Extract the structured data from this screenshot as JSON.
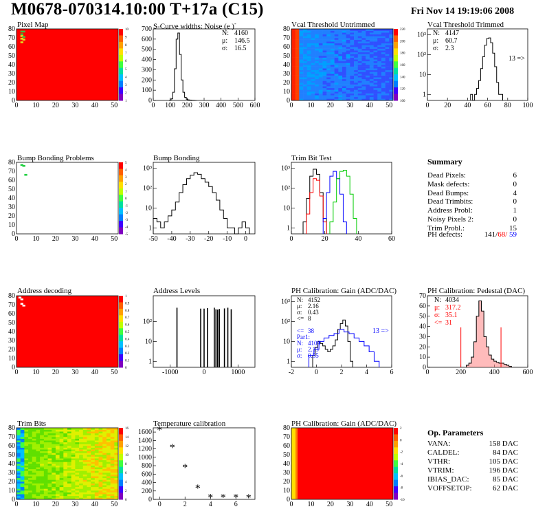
{
  "header": {
    "title": "M0678-070314.10:00 T+17a (C15)",
    "timestamp": "Fri Nov 14 19:19:06 2008"
  },
  "chart_data": [
    {
      "id": "pixel-map",
      "type": "heatmap",
      "title": "Pixel Map",
      "xlim": [
        0,
        52
      ],
      "ylim": [
        0,
        80
      ],
      "x_ticks": [
        0,
        10,
        20,
        30,
        40,
        50
      ],
      "y_ticks": [
        0,
        10,
        20,
        30,
        40,
        50,
        60,
        70,
        80
      ],
      "z_ticks": [
        1,
        2,
        3,
        4,
        5,
        6,
        7,
        8,
        9,
        10
      ],
      "fill": "#ff0000",
      "hot_cells": [
        [
          2,
          78,
          "#40c040"
        ],
        [
          3,
          78,
          "#40c040"
        ],
        [
          2,
          75,
          "#40c040"
        ],
        [
          2,
          73,
          "#e0e020"
        ],
        [
          3,
          72,
          "#40c040"
        ],
        [
          2,
          70,
          "#e0e020"
        ],
        [
          3,
          69,
          "#e0e020"
        ],
        [
          2,
          66,
          "#e0e020"
        ]
      ]
    },
    {
      "id": "scurve-noise",
      "type": "histogram",
      "title": "S-Curve widths: Noise (e )",
      "superscript": "-",
      "xlim": [
        0,
        600
      ],
      "ylim": [
        0,
        700
      ],
      "x_ticks": [
        0,
        100,
        200,
        300,
        400,
        500,
        600
      ],
      "y_ticks": [
        0,
        100,
        200,
        300,
        400,
        500,
        600,
        700
      ],
      "stats": [
        {
          "label": "N:",
          "value": "4160"
        },
        {
          "label": "μ:",
          "value": "146.5"
        },
        {
          "label": "σ:",
          "value": "16.5"
        }
      ],
      "bins_x": [
        100,
        110,
        120,
        130,
        140,
        150,
        160,
        170,
        180,
        190,
        200,
        210,
        220,
        230,
        240,
        250
      ],
      "values": [
        2,
        15,
        80,
        310,
        600,
        660,
        450,
        200,
        80,
        30,
        12,
        5,
        3,
        2,
        1,
        0
      ]
    },
    {
      "id": "vcal-untrimmed",
      "type": "heatmap",
      "title": "Vcal Threshold Untrimmed",
      "xlim": [
        0,
        52
      ],
      "ylim": [
        0,
        80
      ],
      "x_ticks": [
        0,
        10,
        20,
        30,
        40,
        50
      ],
      "y_ticks": [
        0,
        10,
        20,
        30,
        40,
        50,
        60,
        70,
        80
      ],
      "z_ticks": [
        100,
        120,
        140,
        160,
        180,
        200,
        220
      ]
    },
    {
      "id": "vcal-trimmed",
      "type": "histogram",
      "title": "Vcal Threshold Trimmed",
      "log_y": true,
      "xlim": [
        0,
        100
      ],
      "ylim_log": [
        0.5,
        2000
      ],
      "x_ticks": [
        0,
        20,
        40,
        60,
        80,
        100
      ],
      "y_ticks": [
        "1",
        "10",
        "10²",
        "10³"
      ],
      "stats": [
        {
          "label": "N:",
          "value": "4147"
        },
        {
          "label": "μ:",
          "value": "60.7"
        },
        {
          "label": "σ:",
          "value": "2.3"
        }
      ],
      "annotation": "13 =>",
      "bins_x": [
        44,
        46,
        48,
        50,
        52,
        54,
        56,
        58,
        60,
        62,
        64,
        66,
        68,
        70,
        72,
        74
      ],
      "values": [
        1,
        0,
        1,
        2,
        5,
        20,
        80,
        300,
        650,
        700,
        400,
        120,
        25,
        4,
        1,
        1
      ]
    },
    {
      "id": "bump-bonding-problems",
      "type": "heatmap",
      "title": "Bump Bonding Problems",
      "xlim": [
        0,
        52
      ],
      "ylim": [
        0,
        80
      ],
      "x_ticks": [
        0,
        10,
        20,
        30,
        40,
        50
      ],
      "y_ticks": [
        0,
        10,
        20,
        30,
        40,
        50,
        60,
        70,
        80
      ],
      "z_ticks": [
        -5,
        -4,
        -3,
        -2,
        -1,
        0,
        1,
        2,
        3,
        4,
        5
      ],
      "hot_cells": [
        [
          2,
          78,
          "#20d040"
        ],
        [
          3,
          77,
          "#20d040"
        ],
        [
          4,
          67,
          "#20d040"
        ]
      ]
    },
    {
      "id": "bump-bonding",
      "type": "histogram",
      "title": "Bump Bonding",
      "log_y": true,
      "xlim": [
        -50,
        5
      ],
      "ylim_log": [
        0.5,
        2000
      ],
      "x_ticks": [
        -50,
        -40,
        -30,
        -20,
        -10,
        0
      ],
      "y_ticks": [
        "1",
        "10",
        "10²",
        "10³"
      ],
      "bins_x": [
        -49,
        -47,
        -45,
        -43,
        -41,
        -39,
        -37,
        -35,
        -33,
        -31,
        -29,
        -27,
        -25,
        -23,
        -21,
        -19,
        -17,
        -15,
        -13,
        -11,
        -9,
        -7,
        -5,
        -3,
        -1,
        1
      ],
      "values": [
        3,
        2,
        1,
        2,
        4,
        8,
        20,
        60,
        150,
        300,
        450,
        600,
        500,
        300,
        200,
        120,
        60,
        25,
        8,
        3,
        1,
        1,
        0,
        1,
        2,
        1
      ]
    },
    {
      "id": "trim-bit-test",
      "type": "histogram",
      "title": "Trim Bit Test",
      "log_y": true,
      "xlim": [
        0,
        60
      ],
      "ylim_log": [
        0.5,
        2000
      ],
      "x_ticks": [
        0,
        20,
        40,
        60
      ],
      "y_ticks": [
        "1",
        "10",
        "10²",
        "10³"
      ],
      "series": [
        {
          "color": "#000000",
          "x": [
            8,
            10,
            12,
            14,
            16,
            18,
            20
          ],
          "values": [
            2,
            30,
            400,
            900,
            500,
            60,
            3
          ]
        },
        {
          "color": "#ff0000",
          "x": [
            10,
            12,
            14,
            16,
            18,
            20
          ],
          "values": [
            5,
            60,
            300,
            250,
            40,
            2
          ]
        },
        {
          "color": "#0000ff",
          "x": [
            20,
            22,
            24,
            26,
            28,
            30,
            32
          ],
          "values": [
            3,
            60,
            400,
            700,
            300,
            50,
            2
          ]
        },
        {
          "color": "#00cc00",
          "x": [
            24,
            26,
            28,
            30,
            32,
            34,
            36,
            38
          ],
          "values": [
            2,
            20,
            300,
            700,
            800,
            400,
            50,
            3
          ]
        }
      ]
    },
    {
      "id": "address-decoding",
      "type": "heatmap",
      "title": "Address decoding",
      "xlim": [
        0,
        52
      ],
      "ylim": [
        0,
        80
      ],
      "x_ticks": [
        0,
        10,
        20,
        30,
        40,
        50
      ],
      "y_ticks": [
        0,
        10,
        20,
        30,
        40,
        50,
        60,
        70,
        80
      ],
      "z_ticks": [
        0,
        0.1,
        0.2,
        0.3,
        0.4,
        0.5,
        0.6,
        0.7,
        0.8,
        0.9,
        1
      ],
      "fill": "#ff0000",
      "hot_cells": [
        [
          1,
          79,
          "#ffffff"
        ],
        [
          2,
          77,
          "#ffffff"
        ],
        [
          3,
          70,
          "#ffffff"
        ],
        [
          2,
          72,
          "#ffffff"
        ]
      ]
    },
    {
      "id": "address-levels",
      "type": "histogram",
      "title": "Address Levels",
      "log_y": true,
      "xlim": [
        -1500,
        1500
      ],
      "ylim_log": [
        0.5,
        2000
      ],
      "x_ticks": [
        -1000,
        0,
        1000
      ],
      "y_ticks": [
        "1",
        "10",
        "10²"
      ],
      "spikes": [
        -800,
        -100,
        0,
        100,
        300,
        350,
        400,
        450,
        600,
        700,
        800
      ],
      "heights": [
        500,
        450,
        450,
        480,
        500,
        420,
        400,
        430,
        460,
        500,
        420
      ]
    },
    {
      "id": "ph-gain",
      "type": "histogram",
      "title": "PH Calibration: Gain (ADC/DAC)",
      "log_y": true,
      "xlim": [
        -2,
        6
      ],
      "ylim_log": [
        0.5,
        2000
      ],
      "x_ticks": [
        -2,
        0,
        2,
        4,
        6
      ],
      "y_ticks": [
        "1",
        "10",
        "10²",
        "10³"
      ],
      "stats_black": [
        {
          "label": "N:",
          "value": "4152"
        },
        {
          "label": "μ:",
          "value": "2.16"
        },
        {
          "label": "σ:",
          "value": "0.43"
        },
        {
          "label": "<=",
          "value": "8"
        }
      ],
      "stats_blue": [
        {
          "label": "<=",
          "value": "38"
        },
        {
          "label": "Par1:",
          "value": ""
        },
        {
          "label": "N:",
          "value": "4109"
        },
        {
          "label": "μ:",
          "value": "2.13"
        },
        {
          "label": "σ:",
          "value": "0.55"
        }
      ],
      "annotation": "13 =>",
      "series": [
        {
          "color": "#000000",
          "x": [
            -0.2,
            0,
            0.2,
            0.4,
            0.6,
            0.8,
            1.0,
            1.2,
            1.4,
            1.6,
            1.8,
            2.0,
            2.2,
            2.4,
            2.6,
            2.8
          ],
          "values": [
            2,
            5,
            10,
            8,
            6,
            4,
            3,
            4,
            6,
            12,
            40,
            80,
            120,
            60,
            10,
            1
          ]
        },
        {
          "color": "#0000ff",
          "x": [
            -0.4,
            0,
            0.4,
            0.8,
            1.2,
            1.6,
            2.0,
            2.4,
            2.8,
            3.2,
            3.6,
            4.0,
            4.4,
            4.8
          ],
          "values": [
            2,
            4,
            10,
            15,
            20,
            25,
            40,
            30,
            25,
            15,
            10,
            6,
            3,
            1
          ]
        }
      ]
    },
    {
      "id": "ph-pedestal",
      "type": "histogram",
      "title": "PH Calibration: Pedestal (DAC)",
      "xlim": [
        0,
        600
      ],
      "ylim": [
        0,
        70
      ],
      "x_ticks": [
        0,
        200,
        400,
        600
      ],
      "y_ticks": [
        0,
        10,
        20,
        30,
        40,
        50,
        60,
        70
      ],
      "stats": [
        {
          "label": "N:",
          "value": "4034"
        }
      ],
      "stats_red": [
        {
          "label": "μ:",
          "value": "317.2"
        },
        {
          "label": "σ:",
          "value": "35.1"
        },
        {
          "label": "<=",
          "value": "31"
        }
      ],
      "cut_lines": [
        200,
        440
      ],
      "bins_x": [
        240,
        255,
        270,
        285,
        300,
        315,
        330,
        345,
        360,
        375,
        390,
        405,
        420,
        435,
        450,
        465,
        480,
        495
      ],
      "values": [
        2,
        4,
        10,
        25,
        50,
        65,
        55,
        30,
        20,
        12,
        8,
        6,
        5,
        4,
        4,
        3,
        2,
        1
      ]
    },
    {
      "id": "trim-bits",
      "type": "heatmap",
      "title": "Trim Bits",
      "xlim": [
        0,
        52
      ],
      "ylim": [
        0,
        80
      ],
      "x_ticks": [
        0,
        10,
        20,
        30,
        40,
        50
      ],
      "y_ticks": [
        0,
        10,
        20,
        30,
        40,
        50,
        60,
        70,
        80
      ],
      "z_ticks": [
        0,
        2,
        4,
        6,
        8,
        10,
        12,
        14,
        16
      ]
    },
    {
      "id": "temperature-calibration",
      "type": "scatter",
      "title": "Temperature calibration",
      "xlim": [
        -0.5,
        7.5
      ],
      "ylim": [
        0,
        1700
      ],
      "x_ticks": [
        0,
        2,
        4,
        6
      ],
      "y_ticks": [
        0,
        200,
        400,
        600,
        800,
        1000,
        1200,
        1400,
        1600
      ],
      "x": [
        0,
        1,
        2,
        3,
        4,
        5,
        6,
        7
      ],
      "y": [
        1640,
        1230,
        750,
        260,
        40,
        40,
        40,
        30
      ]
    },
    {
      "id": "ph-gain-map",
      "type": "heatmap",
      "title": "PH Calibration: Gain (ADC/DAC)",
      "xlim": [
        0,
        52
      ],
      "ylim": [
        0,
        80
      ],
      "x_ticks": [
        0,
        10,
        20,
        30,
        40,
        50
      ],
      "y_ticks": [
        0,
        10,
        20,
        30,
        40,
        50,
        60,
        70,
        80
      ],
      "z_ticks": [
        -10,
        -8,
        -6,
        -4,
        -2,
        0,
        2
      ],
      "fill": "#ff0000"
    }
  ],
  "summary": {
    "heading": "Summary",
    "rows": [
      {
        "label": "Dead Pixels:",
        "value": "6"
      },
      {
        "label": "Mask defects:",
        "value": "0"
      },
      {
        "label": "Dead Bumps:",
        "value": "4"
      },
      {
        "label": "Dead Trimbits:",
        "value": "0"
      },
      {
        "label": "Address Probl:",
        "value": "1"
      },
      {
        "label": "Noisy Pixels 2:",
        "value": "0"
      },
      {
        "label": "Trim Probl.:",
        "value": "15"
      }
    ],
    "ph_defects_label": "PH defects:",
    "ph_defects_black": "141/",
    "ph_defects_red": "68/",
    "ph_defects_blue": "59"
  },
  "op_params": {
    "heading": "Op. Parameters",
    "rows": [
      {
        "label": "VANA:",
        "value": "158 DAC"
      },
      {
        "label": "CALDEL:",
        "value": "84 DAC"
      },
      {
        "label": "VTHR:",
        "value": "105 DAC"
      },
      {
        "label": "VTRIM:",
        "value": "196 DAC"
      },
      {
        "label": "IBIAS_DAC:",
        "value": "85 DAC"
      },
      {
        "label": "VOFFSETOP:",
        "value": "62 DAC"
      }
    ]
  },
  "colors": {
    "red": "#ff0000",
    "blue": "#0000ff",
    "green": "#00cc00",
    "black": "#000000"
  }
}
